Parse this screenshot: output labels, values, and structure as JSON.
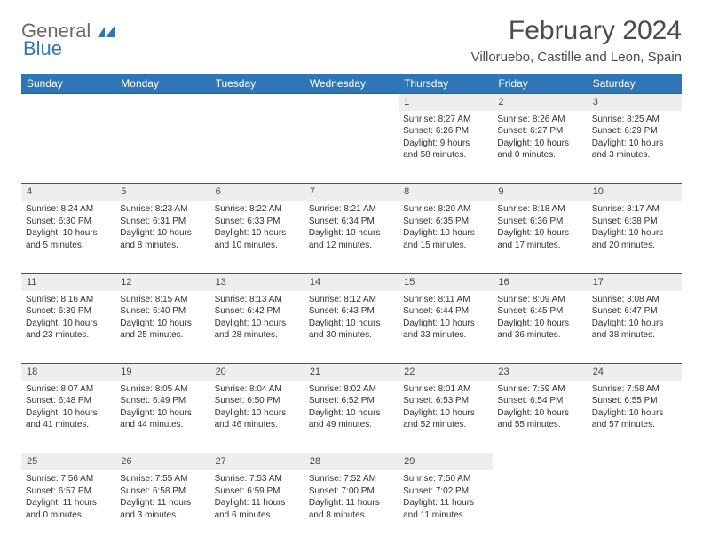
{
  "logo": {
    "word1": "General",
    "word2": "Blue"
  },
  "title": "February 2024",
  "subtitle": "Villoruebo, Castille and Leon, Spain",
  "colors": {
    "header_bg": "#2f76b6",
    "header_fg": "#ffffff",
    "daynum_bg": "#eeeeee",
    "rule": "#3a5a78",
    "title_fg": "#4a4a4a",
    "logo_gray": "#6a6a6a",
    "logo_blue": "#2f76b6",
    "text": "#333333"
  },
  "day_headers": [
    "Sunday",
    "Monday",
    "Tuesday",
    "Wednesday",
    "Thursday",
    "Friday",
    "Saturday"
  ],
  "weeks": [
    {
      "nums": [
        "",
        "",
        "",
        "",
        "1",
        "2",
        "3"
      ],
      "cells": [
        null,
        null,
        null,
        null,
        {
          "sunrise": "Sunrise: 8:27 AM",
          "sunset": "Sunset: 6:26 PM",
          "day1": "Daylight: 9 hours",
          "day2": "and 58 minutes."
        },
        {
          "sunrise": "Sunrise: 8:26 AM",
          "sunset": "Sunset: 6:27 PM",
          "day1": "Daylight: 10 hours",
          "day2": "and 0 minutes."
        },
        {
          "sunrise": "Sunrise: 8:25 AM",
          "sunset": "Sunset: 6:29 PM",
          "day1": "Daylight: 10 hours",
          "day2": "and 3 minutes."
        }
      ]
    },
    {
      "nums": [
        "4",
        "5",
        "6",
        "7",
        "8",
        "9",
        "10"
      ],
      "cells": [
        {
          "sunrise": "Sunrise: 8:24 AM",
          "sunset": "Sunset: 6:30 PM",
          "day1": "Daylight: 10 hours",
          "day2": "and 5 minutes."
        },
        {
          "sunrise": "Sunrise: 8:23 AM",
          "sunset": "Sunset: 6:31 PM",
          "day1": "Daylight: 10 hours",
          "day2": "and 8 minutes."
        },
        {
          "sunrise": "Sunrise: 8:22 AM",
          "sunset": "Sunset: 6:33 PM",
          "day1": "Daylight: 10 hours",
          "day2": "and 10 minutes."
        },
        {
          "sunrise": "Sunrise: 8:21 AM",
          "sunset": "Sunset: 6:34 PM",
          "day1": "Daylight: 10 hours",
          "day2": "and 12 minutes."
        },
        {
          "sunrise": "Sunrise: 8:20 AM",
          "sunset": "Sunset: 6:35 PM",
          "day1": "Daylight: 10 hours",
          "day2": "and 15 minutes."
        },
        {
          "sunrise": "Sunrise: 8:18 AM",
          "sunset": "Sunset: 6:36 PM",
          "day1": "Daylight: 10 hours",
          "day2": "and 17 minutes."
        },
        {
          "sunrise": "Sunrise: 8:17 AM",
          "sunset": "Sunset: 6:38 PM",
          "day1": "Daylight: 10 hours",
          "day2": "and 20 minutes."
        }
      ]
    },
    {
      "nums": [
        "11",
        "12",
        "13",
        "14",
        "15",
        "16",
        "17"
      ],
      "cells": [
        {
          "sunrise": "Sunrise: 8:16 AM",
          "sunset": "Sunset: 6:39 PM",
          "day1": "Daylight: 10 hours",
          "day2": "and 23 minutes."
        },
        {
          "sunrise": "Sunrise: 8:15 AM",
          "sunset": "Sunset: 6:40 PM",
          "day1": "Daylight: 10 hours",
          "day2": "and 25 minutes."
        },
        {
          "sunrise": "Sunrise: 8:13 AM",
          "sunset": "Sunset: 6:42 PM",
          "day1": "Daylight: 10 hours",
          "day2": "and 28 minutes."
        },
        {
          "sunrise": "Sunrise: 8:12 AM",
          "sunset": "Sunset: 6:43 PM",
          "day1": "Daylight: 10 hours",
          "day2": "and 30 minutes."
        },
        {
          "sunrise": "Sunrise: 8:11 AM",
          "sunset": "Sunset: 6:44 PM",
          "day1": "Daylight: 10 hours",
          "day2": "and 33 minutes."
        },
        {
          "sunrise": "Sunrise: 8:09 AM",
          "sunset": "Sunset: 6:45 PM",
          "day1": "Daylight: 10 hours",
          "day2": "and 36 minutes."
        },
        {
          "sunrise": "Sunrise: 8:08 AM",
          "sunset": "Sunset: 6:47 PM",
          "day1": "Daylight: 10 hours",
          "day2": "and 38 minutes."
        }
      ]
    },
    {
      "nums": [
        "18",
        "19",
        "20",
        "21",
        "22",
        "23",
        "24"
      ],
      "cells": [
        {
          "sunrise": "Sunrise: 8:07 AM",
          "sunset": "Sunset: 6:48 PM",
          "day1": "Daylight: 10 hours",
          "day2": "and 41 minutes."
        },
        {
          "sunrise": "Sunrise: 8:05 AM",
          "sunset": "Sunset: 6:49 PM",
          "day1": "Daylight: 10 hours",
          "day2": "and 44 minutes."
        },
        {
          "sunrise": "Sunrise: 8:04 AM",
          "sunset": "Sunset: 6:50 PM",
          "day1": "Daylight: 10 hours",
          "day2": "and 46 minutes."
        },
        {
          "sunrise": "Sunrise: 8:02 AM",
          "sunset": "Sunset: 6:52 PM",
          "day1": "Daylight: 10 hours",
          "day2": "and 49 minutes."
        },
        {
          "sunrise": "Sunrise: 8:01 AM",
          "sunset": "Sunset: 6:53 PM",
          "day1": "Daylight: 10 hours",
          "day2": "and 52 minutes."
        },
        {
          "sunrise": "Sunrise: 7:59 AM",
          "sunset": "Sunset: 6:54 PM",
          "day1": "Daylight: 10 hours",
          "day2": "and 55 minutes."
        },
        {
          "sunrise": "Sunrise: 7:58 AM",
          "sunset": "Sunset: 6:55 PM",
          "day1": "Daylight: 10 hours",
          "day2": "and 57 minutes."
        }
      ]
    },
    {
      "nums": [
        "25",
        "26",
        "27",
        "28",
        "29",
        "",
        ""
      ],
      "cells": [
        {
          "sunrise": "Sunrise: 7:56 AM",
          "sunset": "Sunset: 6:57 PM",
          "day1": "Daylight: 11 hours",
          "day2": "and 0 minutes."
        },
        {
          "sunrise": "Sunrise: 7:55 AM",
          "sunset": "Sunset: 6:58 PM",
          "day1": "Daylight: 11 hours",
          "day2": "and 3 minutes."
        },
        {
          "sunrise": "Sunrise: 7:53 AM",
          "sunset": "Sunset: 6:59 PM",
          "day1": "Daylight: 11 hours",
          "day2": "and 6 minutes."
        },
        {
          "sunrise": "Sunrise: 7:52 AM",
          "sunset": "Sunset: 7:00 PM",
          "day1": "Daylight: 11 hours",
          "day2": "and 8 minutes."
        },
        {
          "sunrise": "Sunrise: 7:50 AM",
          "sunset": "Sunset: 7:02 PM",
          "day1": "Daylight: 11 hours",
          "day2": "and 11 minutes."
        },
        null,
        null
      ]
    }
  ]
}
